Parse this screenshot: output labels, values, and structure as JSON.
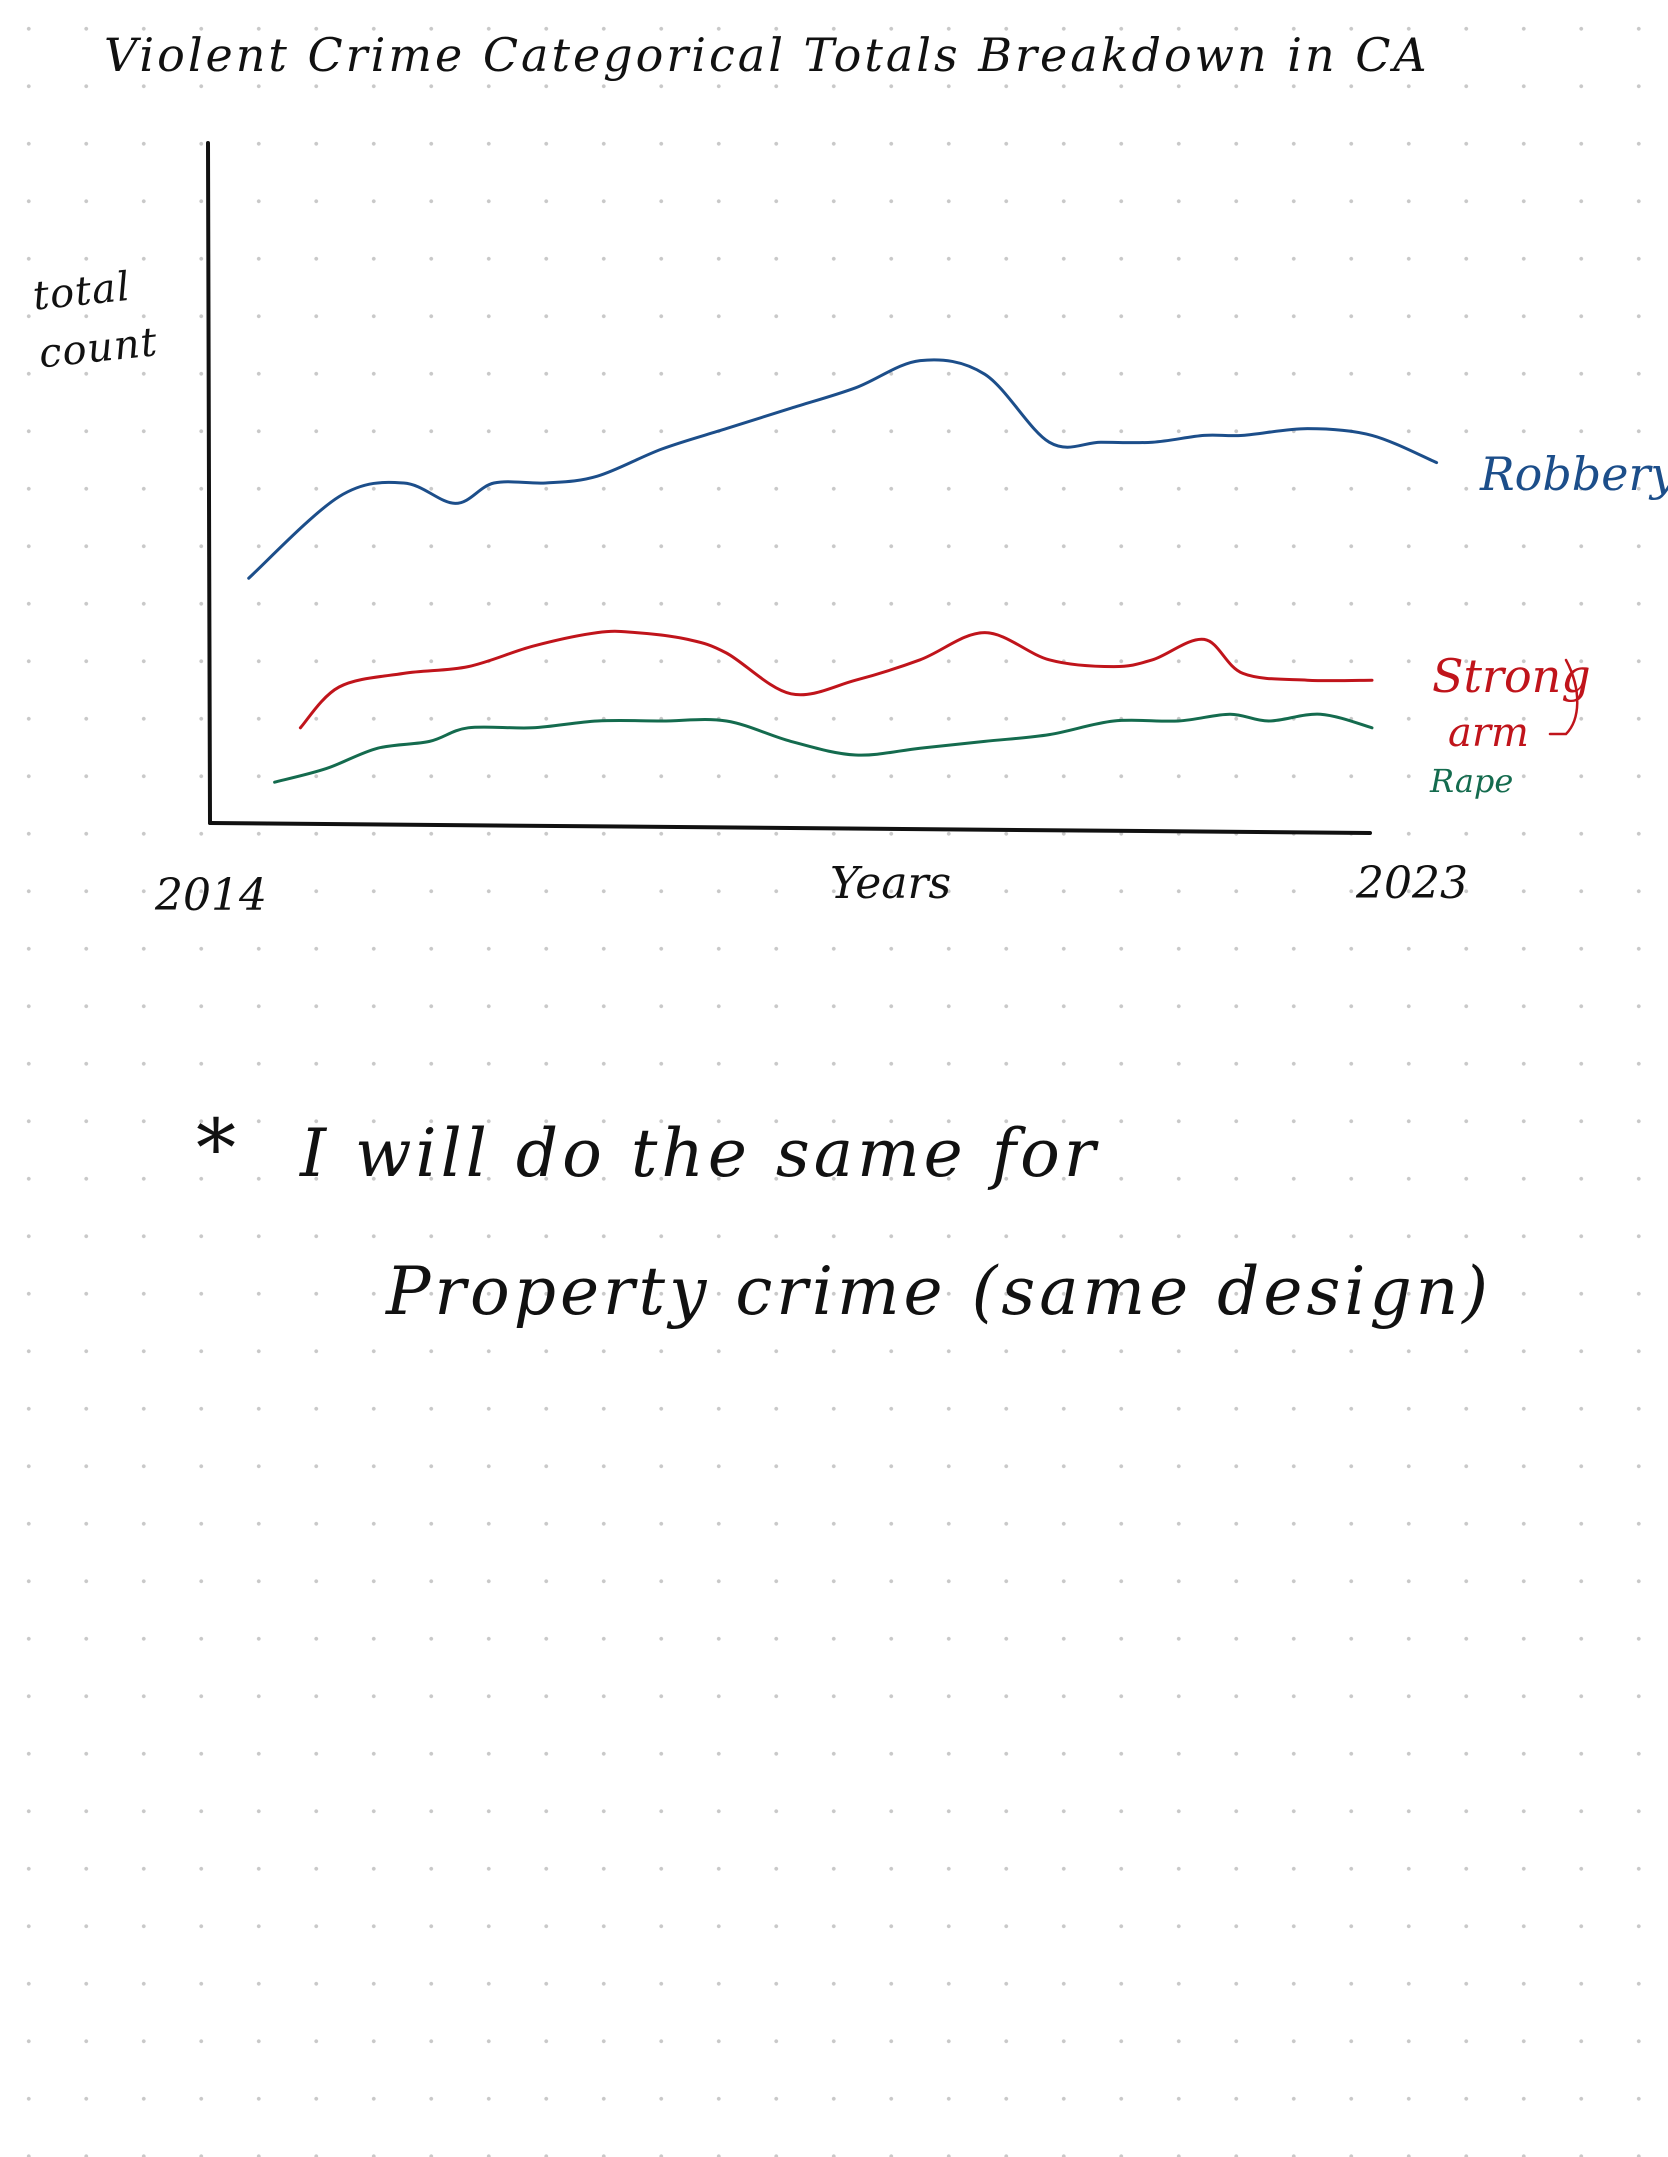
{
  "chart_data": {
    "type": "line",
    "title": "Violent Crime Categorical Totals Breakdown in CA",
    "xlabel": "Years",
    "ylabel": "total count",
    "x_tick_labels": [
      "2014",
      "2023"
    ],
    "xlim": [
      2014,
      2023
    ],
    "ylim": [
      0,
      100
    ],
    "grid": false,
    "legend": "labels at line ends (right)",
    "series": [
      {
        "name": "Robbery",
        "color": "#1c4e8a",
        "x": [
          2014.3,
          2015.0,
          2015.5,
          2015.9,
          2016.2,
          2016.6,
          2017.0,
          2017.5,
          2018.0,
          2018.5,
          2019.0,
          2019.5,
          2020.0,
          2020.5,
          2020.9,
          2021.3,
          2021.7,
          2022.0,
          2022.5,
          2023.0,
          2023.5
        ],
        "values": [
          36,
          48,
          50,
          47,
          50,
          50,
          51,
          55,
          58,
          61,
          64,
          68,
          66,
          56,
          56,
          56,
          57,
          57,
          58,
          57,
          53
        ]
      },
      {
        "name": "Strong arm",
        "color": "#c0141b",
        "x": [
          2014.7,
          2015.0,
          2015.5,
          2016.0,
          2016.5,
          2017.0,
          2017.3,
          2017.7,
          2018.0,
          2018.5,
          2019.0,
          2019.5,
          2020.0,
          2020.5,
          2021.0,
          2021.3,
          2021.7,
          2022.0,
          2022.5,
          2023.0
        ],
        "values": [
          14,
          20,
          22,
          23,
          26,
          28,
          28,
          27,
          25,
          19,
          21,
          24,
          28,
          24,
          23,
          24,
          27,
          22,
          21,
          21
        ]
      },
      {
        "name": "Rape",
        "color": "#146b4e",
        "x": [
          2014.5,
          2014.9,
          2015.3,
          2015.7,
          2016.0,
          2016.5,
          2017.0,
          2017.5,
          2018.0,
          2018.5,
          2019.0,
          2019.5,
          2020.0,
          2020.5,
          2021.0,
          2021.5,
          2021.9,
          2022.2,
          2022.6,
          2023.0
        ],
        "values": [
          6,
          8,
          11,
          12,
          14,
          14,
          15,
          15,
          15,
          12,
          10,
          11,
          12,
          13,
          15,
          15,
          16,
          15,
          16,
          14
        ]
      }
    ],
    "end_labels": {
      "robbery": "Robbery",
      "strong_arm_line1": "Strong",
      "strong_arm_line2": "arm",
      "rape": "Rape"
    }
  },
  "note": {
    "bullet": "*",
    "line1": "I will do the same for",
    "line2": "Property crime (same design)"
  },
  "colors": {
    "ink": "#111111",
    "robbery": "#1c4e8a",
    "strong_arm": "#c0141b",
    "rape": "#146b4e"
  }
}
